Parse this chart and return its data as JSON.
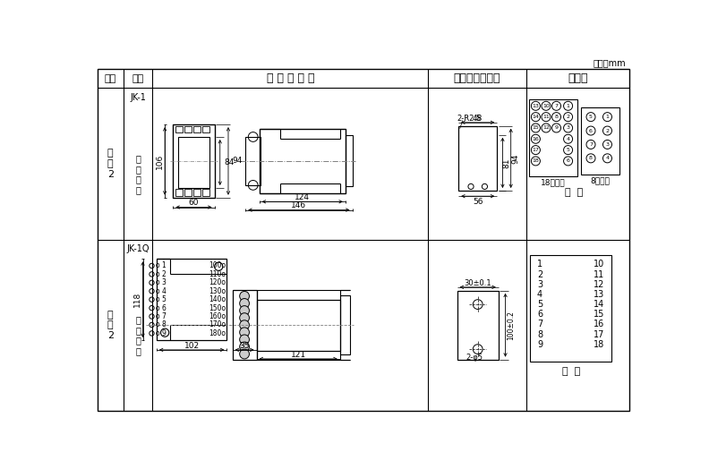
{
  "unit_text": "单位：mm",
  "col_headers": [
    "图号",
    "结构",
    "外 形 尺 寸 图",
    "安装开孔尺寸图",
    "端子图"
  ],
  "row1_fig": "附\n图\n2",
  "row1_struct1": "JK-1",
  "row1_struct2": "板\n后\n接\n线",
  "row2_fig": "附\n图\n2",
  "row2_struct1": "JK-1Q",
  "row2_struct2": "板\n前\n接\n线",
  "label_18pt": "18点端子",
  "label_8pt": "8点端子",
  "label_back": "背  视",
  "label_front": "正  视"
}
